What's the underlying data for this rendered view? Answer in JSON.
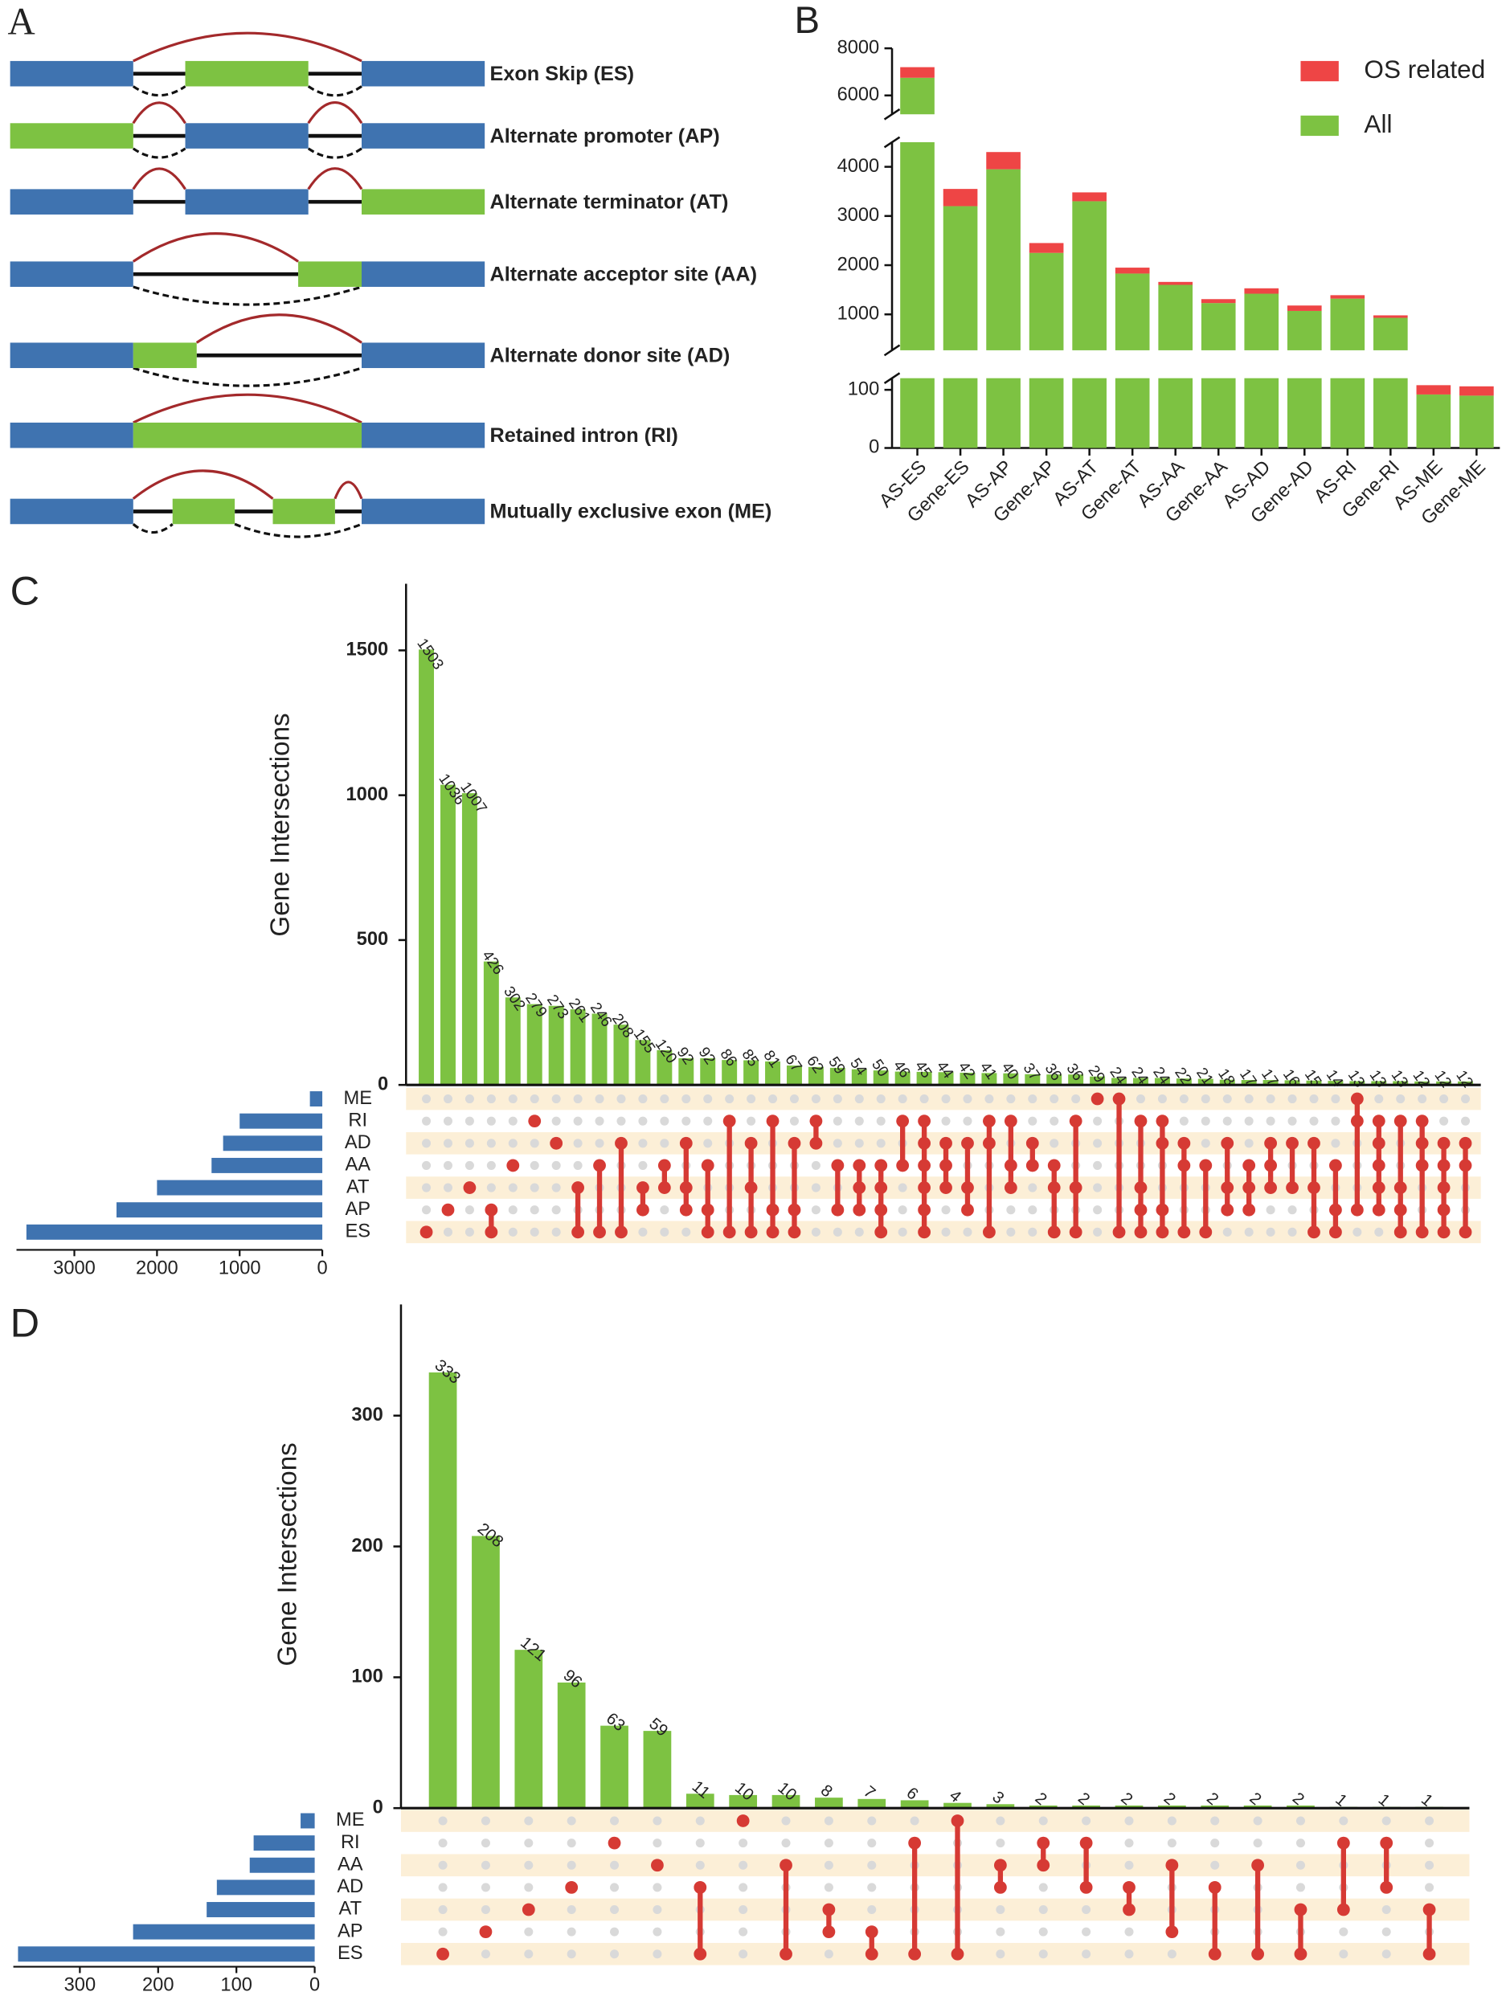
{
  "diagram": {
    "label": "A",
    "events": [
      "Exon Skip (ES)",
      "Alternate promoter (AP)",
      "Alternate terminator (AT)",
      "Alternate acceptor site (AA)",
      "Alternate donor site (AD)",
      "Retained intron (RI)",
      "Mutually exclusive exon (ME)"
    ]
  },
  "chart_data": [
    {
      "type": "broken_bar",
      "panel_label": "B",
      "categories": [
        "AS-ES",
        "Gene-ES",
        "AS-AP",
        "Gene-AP",
        "AS-AT",
        "Gene-AT",
        "AS-AA",
        "Gene-AA",
        "AS-AD",
        "Gene-AD",
        "AS-RI",
        "Gene-RI",
        "AS-ME",
        "Gene-ME"
      ],
      "series": [
        {
          "name": "All",
          "color": "#7dc242",
          "values": [
            6750,
            3200,
            3950,
            2250,
            3300,
            1830,
            1600,
            1230,
            1420,
            1070,
            1320,
            930,
            92,
            90
          ]
        },
        {
          "name": "OS related",
          "color": "#ee4545",
          "values": [
            450,
            350,
            350,
            200,
            180,
            120,
            60,
            80,
            110,
            110,
            70,
            50,
            16,
            16
          ]
        }
      ],
      "stacked": true,
      "segments": [
        {
          "ylim": [
            0,
            120
          ],
          "yticks": [
            0,
            100
          ]
        },
        {
          "ylim": [
            270,
            4500
          ],
          "yticks": [
            1000,
            2000,
            3000,
            4000
          ]
        },
        {
          "ylim": [
            5200,
            8000
          ],
          "yticks": [
            6000,
            8000
          ]
        }
      ],
      "legend": "upper right"
    },
    {
      "type": "upset",
      "panel_label": "C",
      "y_label": "Gene Intersections",
      "values": [
        1503,
        1036,
        1007,
        426,
        302,
        279,
        273,
        261,
        246,
        208,
        155,
        120,
        92,
        92,
        86,
        85,
        81,
        67,
        62,
        59,
        54,
        50,
        46,
        45,
        44,
        42,
        41,
        40,
        37,
        36,
        36,
        29,
        24,
        24,
        24,
        22,
        21,
        18,
        17,
        17,
        16,
        15,
        14,
        13,
        13,
        13,
        12,
        12,
        12
      ],
      "ylim": [
        0,
        1730
      ],
      "yticks": [
        0,
        500,
        1000,
        1500
      ],
      "sets": [
        "ME",
        "RI",
        "AD",
        "AA",
        "AT",
        "AP",
        "ES"
      ],
      "set_sizes": [
        150,
        1000,
        1200,
        1340,
        2000,
        2490,
        3580
      ],
      "set_xlim": [
        0,
        3700
      ],
      "set_xticks": [
        0,
        1000,
        2000,
        3000
      ],
      "memberships": [
        [
          6
        ],
        [
          5
        ],
        [
          4
        ],
        [
          5,
          6
        ],
        [
          3
        ],
        [
          1
        ],
        [
          2
        ],
        [
          4,
          6
        ],
        [
          3,
          6
        ],
        [
          2,
          6
        ],
        [
          4,
          5
        ],
        [
          3,
          4
        ],
        [
          2,
          4,
          5
        ],
        [
          3,
          5,
          6
        ],
        [
          1,
          6
        ],
        [
          2,
          4,
          6
        ],
        [
          1,
          5,
          6
        ],
        [
          2,
          5,
          6
        ],
        [
          1,
          2
        ],
        [
          3,
          5
        ],
        [
          3,
          4,
          5
        ],
        [
          3,
          4,
          5,
          6
        ],
        [
          1,
          3
        ],
        [
          1,
          2,
          3,
          4,
          5,
          6
        ],
        [
          2,
          3,
          4
        ],
        [
          2,
          4,
          5
        ],
        [
          1,
          2,
          6
        ],
        [
          1,
          3,
          4
        ],
        [
          2,
          3
        ],
        [
          3,
          4,
          6
        ],
        [
          1,
          4,
          6
        ],
        [
          0
        ],
        [
          0,
          6
        ],
        [
          1,
          4,
          5,
          6
        ],
        [
          1,
          2,
          5,
          6
        ],
        [
          2,
          3,
          6
        ],
        [
          3,
          6
        ],
        [
          2,
          4,
          5
        ],
        [
          3,
          4,
          5
        ],
        [
          2,
          3,
          4
        ],
        [
          2,
          4
        ],
        [
          2,
          4,
          6
        ],
        [
          3,
          5,
          6
        ],
        [
          0,
          1,
          5
        ],
        [
          1,
          2,
          3,
          4,
          5
        ],
        [
          1,
          4,
          5,
          6
        ],
        [
          1,
          2,
          3,
          6
        ],
        [
          2,
          3,
          4,
          5,
          6
        ],
        [
          2,
          3,
          6
        ]
      ],
      "bar_color": "#7dc242",
      "set_color": "#3f73b0",
      "dot_color": "#d63a34"
    },
    {
      "type": "upset",
      "panel_label": "D",
      "y_label": "Gene Intersections",
      "values": [
        333,
        208,
        121,
        96,
        63,
        59,
        11,
        10,
        10,
        8,
        7,
        6,
        4,
        3,
        2,
        2,
        2,
        2,
        2,
        2,
        2,
        1,
        1,
        1
      ],
      "ylim": [
        0,
        385
      ],
      "yticks": [
        0,
        100,
        200,
        300
      ],
      "sets": [
        "ME",
        "RI",
        "AA",
        "AD",
        "AT",
        "AP",
        "ES"
      ],
      "set_sizes": [
        18,
        78,
        83,
        125,
        138,
        232,
        379
      ],
      "set_xlim": [
        0,
        385
      ],
      "set_xticks": [
        0,
        100,
        200,
        300
      ],
      "memberships": [
        [
          6
        ],
        [
          5
        ],
        [
          4
        ],
        [
          3
        ],
        [
          1
        ],
        [
          2
        ],
        [
          3,
          6
        ],
        [
          0
        ],
        [
          2,
          6
        ],
        [
          4,
          5
        ],
        [
          5,
          6
        ],
        [
          1,
          6
        ],
        [
          0,
          6
        ],
        [
          2,
          3
        ],
        [
          1,
          2
        ],
        [
          1,
          3
        ],
        [
          3,
          4
        ],
        [
          2,
          5
        ],
        [
          3,
          6
        ],
        [
          2,
          6
        ],
        [
          4,
          6
        ],
        [
          1,
          4
        ],
        [
          1,
          3
        ],
        [
          4,
          6
        ]
      ],
      "bar_color": "#7dc242",
      "set_color": "#3f73b0",
      "dot_color": "#d63a34"
    }
  ]
}
